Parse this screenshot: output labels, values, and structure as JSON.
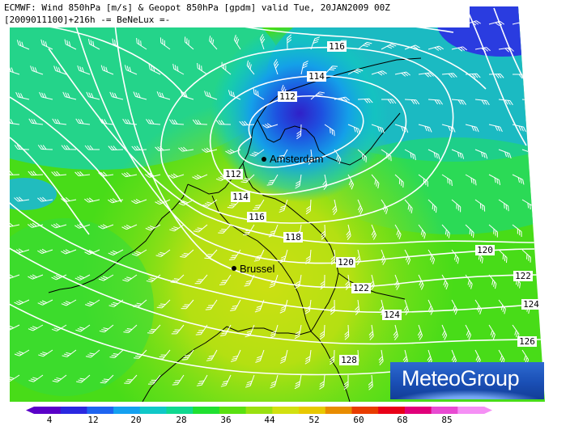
{
  "header": {
    "line1": "ECMWF: Wind 850hPa [m/s] & Geopot 850hPa [gpdm] valid Tue, 20JAN2009 00Z",
    "line2": "[2009011100]+216h -= BeNeLux =-"
  },
  "cities": {
    "amsterdam": "Amsterdam",
    "brussel": "Brussel"
  },
  "contour_labels": {
    "l116_top": "116",
    "l114_top": "114",
    "l112_top": "112",
    "l112_left": "112",
    "l114_left": "114",
    "l116_left": "116",
    "l118": "118",
    "l120_mid": "120",
    "l120_right": "120",
    "l122_mid": "122",
    "l122_right": "122",
    "l124_mid": "124",
    "l124_right": "124",
    "l126": "126",
    "l128": "128"
  },
  "legend": {
    "labels": [
      "4",
      "12",
      "20",
      "28",
      "36",
      "44",
      "52",
      "60",
      "68",
      "85"
    ],
    "colors": [
      "#5a00c8",
      "#2a28e0",
      "#1e64f0",
      "#14a0f0",
      "#10c8c8",
      "#10d890",
      "#20e030",
      "#5ae010",
      "#9ae010",
      "#d2e010",
      "#e8c800",
      "#e88c00",
      "#e83c00",
      "#e80018",
      "#e0007a",
      "#e84ad2",
      "#f590f5"
    ]
  },
  "logo": {
    "text": "MeteoGroup"
  },
  "colors": {
    "contour": "#ffffff",
    "border": "#000000"
  }
}
